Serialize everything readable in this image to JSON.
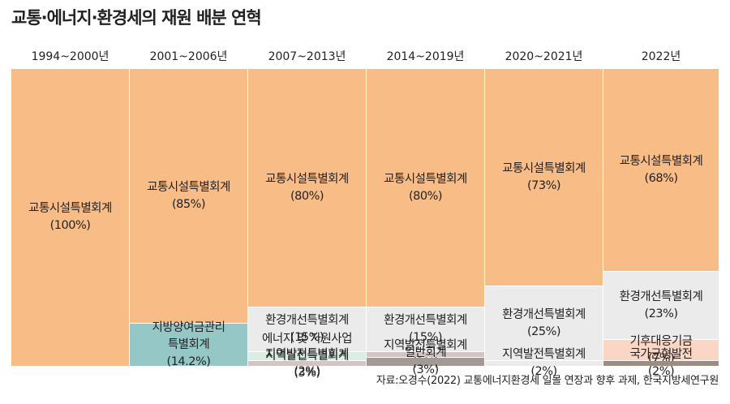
{
  "title": "교통·에너지·환경세의 재원 배분 연혁",
  "source": "자료:오경수(2022) 교통에너지환경세 일몰 연장과 향후 과제, 한국지방세연구원",
  "colors": {
    "transport": "#f8bc87",
    "environment": "#ebebeb",
    "energy_resource": "#dbeee5",
    "regional": "#d3c5c3",
    "local_pension": "#96c7c7",
    "general": "#a39a95",
    "climate": "#fbd6c4",
    "balanced": "#9e8c82"
  },
  "chart_data": {
    "type": "stacked-bar",
    "title": "교통·에너지·환경세의 재원 배분 연혁",
    "periods": [
      {
        "label": "1994~2000년",
        "segments": [
          {
            "name": "교통시설특별회계",
            "value": 100,
            "display": "(100%)",
            "color_key": "transport"
          }
        ]
      },
      {
        "label": "2001~2006년",
        "segments": [
          {
            "name": "교통시설특별회계",
            "value": 85,
            "display": "(85%)",
            "color_key": "transport"
          },
          {
            "name": "지방양여금관리\n특별회계",
            "value": 14.2,
            "display": "(14.2%)",
            "color_key": "local_pension"
          }
        ]
      },
      {
        "label": "2007~2013년",
        "segments": [
          {
            "name": "교통시설특별회계",
            "value": 80,
            "display": "(80%)",
            "color_key": "transport"
          },
          {
            "name": "환경개선특별회계",
            "value": 15,
            "display": "(15%)",
            "color_key": "environment"
          },
          {
            "name": "에너지 및 자원사업\n지역발전특별회계",
            "value": 3,
            "display": "(3%)",
            "color_key": "energy_resource"
          },
          {
            "name": "지역발전특별회계",
            "value": 2,
            "display": "(2%)",
            "color_key": "regional"
          }
        ]
      },
      {
        "label": "2014~2019년",
        "segments": [
          {
            "name": "교통시설특별회계",
            "value": 80,
            "display": "(80%)",
            "color_key": "transport"
          },
          {
            "name": "환경개선특별회계",
            "value": 15,
            "display": "(15%)",
            "color_key": "environment"
          },
          {
            "name": "지역발전특별회계",
            "value": 2,
            "display": "(2%)",
            "color_key": "regional"
          },
          {
            "name": "일반회계",
            "value": 3,
            "display": "(3%)",
            "color_key": "general"
          }
        ]
      },
      {
        "label": "2020~2021년",
        "segments": [
          {
            "name": "교통시설특별회계",
            "value": 73,
            "display": "(73%)",
            "color_key": "transport"
          },
          {
            "name": "환경개선특별회계",
            "value": 25,
            "display": "(25%)",
            "color_key": "environment"
          },
          {
            "name": "지역발전특별회계",
            "value": 2,
            "display": "(2%)",
            "color_key": "environment"
          }
        ]
      },
      {
        "label": "2022년",
        "segments": [
          {
            "name": "교통시설특별회계",
            "value": 68,
            "display": "(68%)",
            "color_key": "transport"
          },
          {
            "name": "환경개선특별회계",
            "value": 23,
            "display": "(23%)",
            "color_key": "environment"
          },
          {
            "name": "기후대응기금",
            "value": 7,
            "display": "(7%)",
            "color_key": "climate"
          },
          {
            "name": "국가균형발전",
            "value": 2,
            "display": "(2%)",
            "color_key": "balanced"
          }
        ]
      }
    ]
  }
}
